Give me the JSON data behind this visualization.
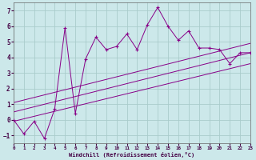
{
  "xlabel": "Windchill (Refroidissement éolien,°C)",
  "bg_color": "#cce8ea",
  "grid_color": "#aacccc",
  "line_color": "#880088",
  "xmin": 0,
  "xmax": 23,
  "ymin": -1.5,
  "ymax": 7.5,
  "yticks": [
    -1,
    0,
    1,
    2,
    3,
    4,
    5,
    6,
    7
  ],
  "xticks": [
    0,
    1,
    2,
    3,
    4,
    5,
    6,
    7,
    8,
    9,
    10,
    11,
    12,
    13,
    14,
    15,
    16,
    17,
    18,
    19,
    20,
    21,
    22,
    23
  ],
  "scatter_x": [
    0,
    1,
    2,
    3,
    4,
    5,
    6,
    7,
    8,
    9,
    10,
    11,
    12,
    13,
    14,
    15,
    16,
    17,
    18,
    19,
    20,
    21,
    22,
    23
  ],
  "scatter_y": [
    0.0,
    -0.9,
    -0.1,
    -1.2,
    0.7,
    5.9,
    0.4,
    3.9,
    5.3,
    4.5,
    4.7,
    5.5,
    4.5,
    6.1,
    7.2,
    6.0,
    5.1,
    5.7,
    4.6,
    4.6,
    4.5,
    3.6,
    4.3,
    4.3
  ],
  "line1_x": [
    0,
    23
  ],
  "line1_y": [
    -0.1,
    3.6
  ],
  "line2_x": [
    0,
    23
  ],
  "line2_y": [
    0.5,
    4.3
  ],
  "line3_x": [
    0,
    23
  ],
  "line3_y": [
    1.1,
    4.9
  ]
}
